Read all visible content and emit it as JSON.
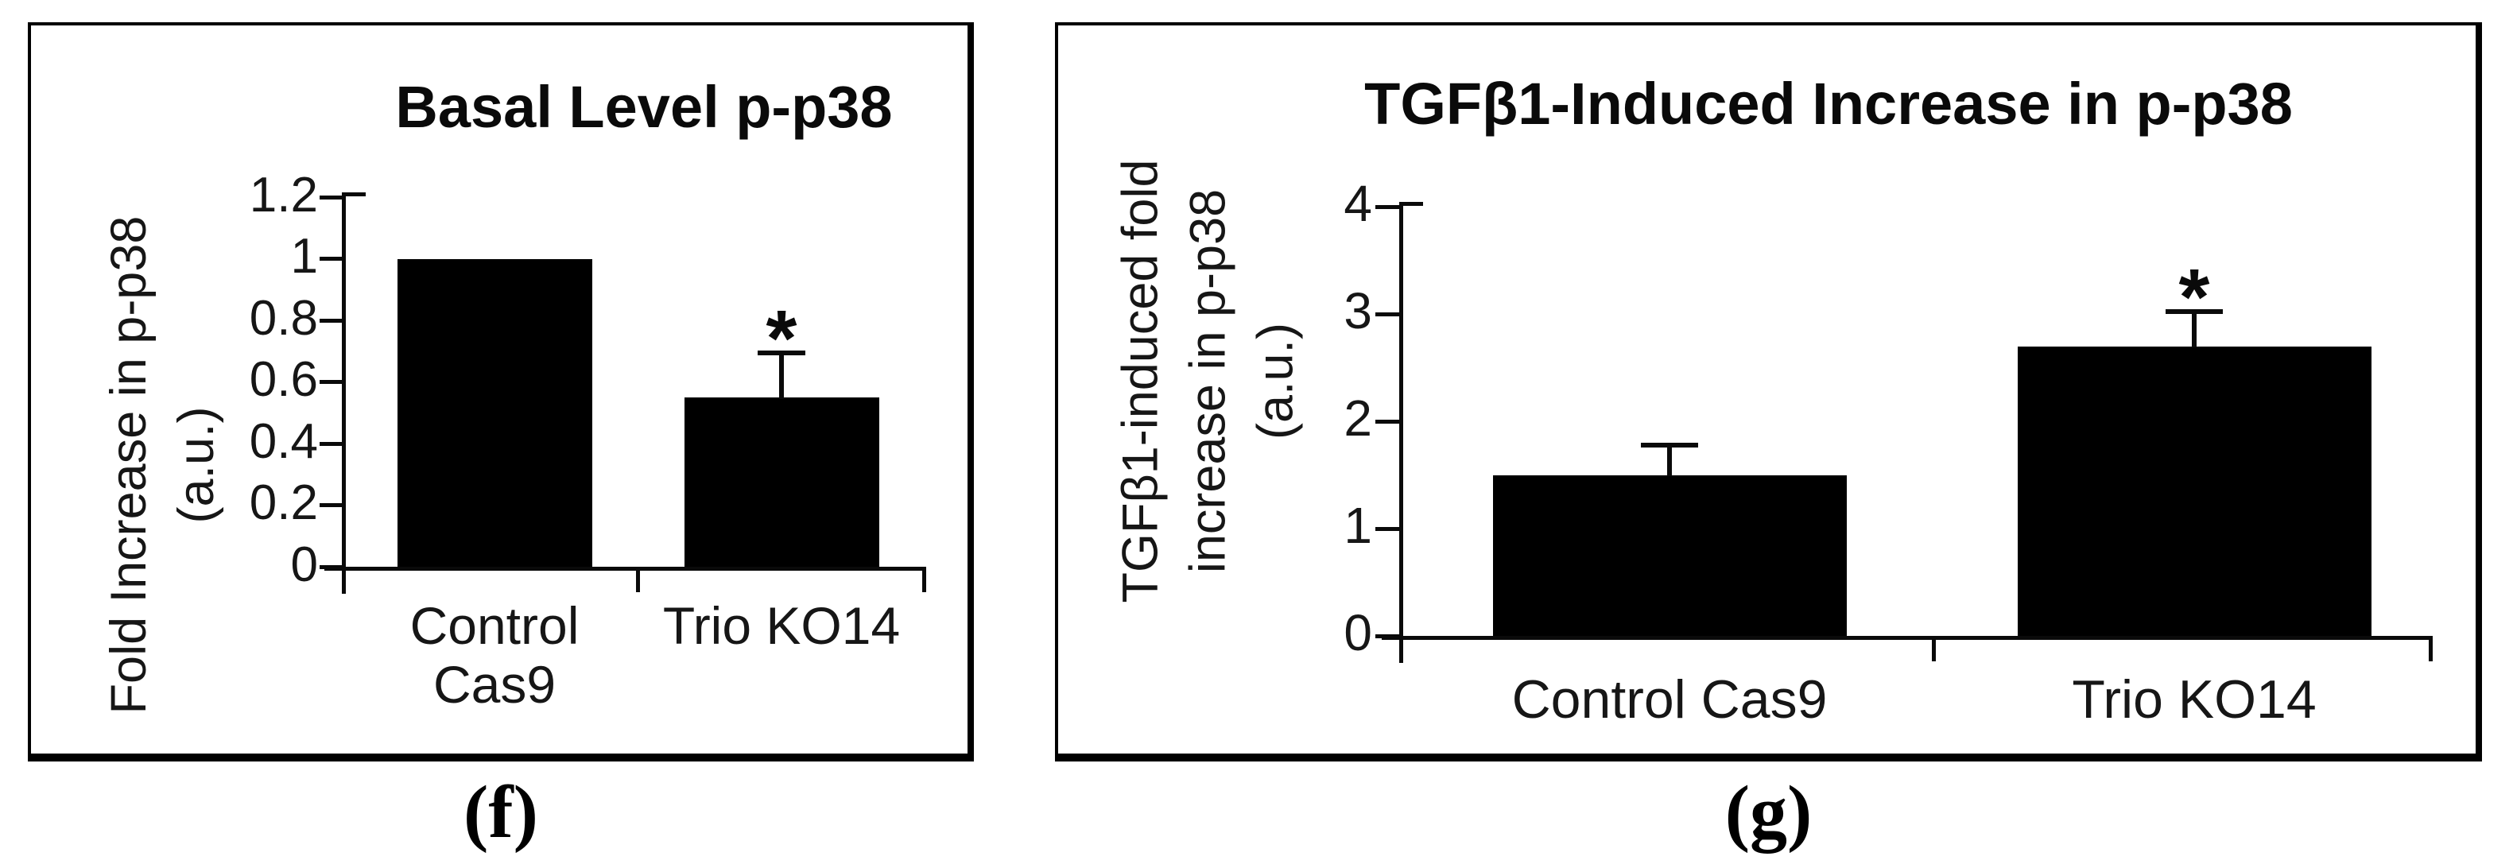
{
  "figure": {
    "panels": [
      {
        "caption": "(f)"
      },
      {
        "caption": "(g)"
      }
    ]
  },
  "chart_data": [
    {
      "type": "bar",
      "title": "Basal Level p-p38",
      "ylabel_lines": [
        "Fold Increase in p-p38",
        "(a.u.)"
      ],
      "categories": [
        "Control Cas9",
        "Trio KO14"
      ],
      "xtick_display": [
        "Control\nCas9",
        "Trio KO14"
      ],
      "values": [
        1.0,
        0.55
      ],
      "error_up": [
        null,
        0.14
      ],
      "significance": [
        null,
        "*"
      ],
      "ytick_labels": [
        "1.2",
        "1",
        "0.8",
        "0.6",
        "0.4",
        "0.2",
        "0"
      ],
      "ytick_values": [
        1.2,
        1,
        0.8,
        0.6,
        0.4,
        0.2,
        0
      ],
      "ylim": [
        0,
        1.2
      ],
      "bar_color": "#000000",
      "axis_color": "#0a0a0a",
      "grid": false,
      "legend_position": "none"
    },
    {
      "type": "bar",
      "title": "TGFβ1-Induced Increase in p-p38",
      "ylabel_lines": [
        "TGFβ1-induced fold",
        "increase in p-p38",
        "(a.u.)"
      ],
      "categories": [
        "Control Cas9",
        "Trio KO14"
      ],
      "xtick_display": [
        "Control Cas9",
        "Trio KO14"
      ],
      "values": [
        1.5,
        2.7
      ],
      "error_up": [
        0.26,
        0.31
      ],
      "significance": [
        null,
        "*"
      ],
      "ytick_labels": [
        "4",
        "3",
        "2",
        "1",
        "0"
      ],
      "ytick_values": [
        4,
        3,
        2,
        1,
        0
      ],
      "ylim": [
        0,
        4
      ],
      "bar_color": "#000000",
      "axis_color": "#0a0a0a",
      "grid": false,
      "legend_position": "none"
    }
  ]
}
